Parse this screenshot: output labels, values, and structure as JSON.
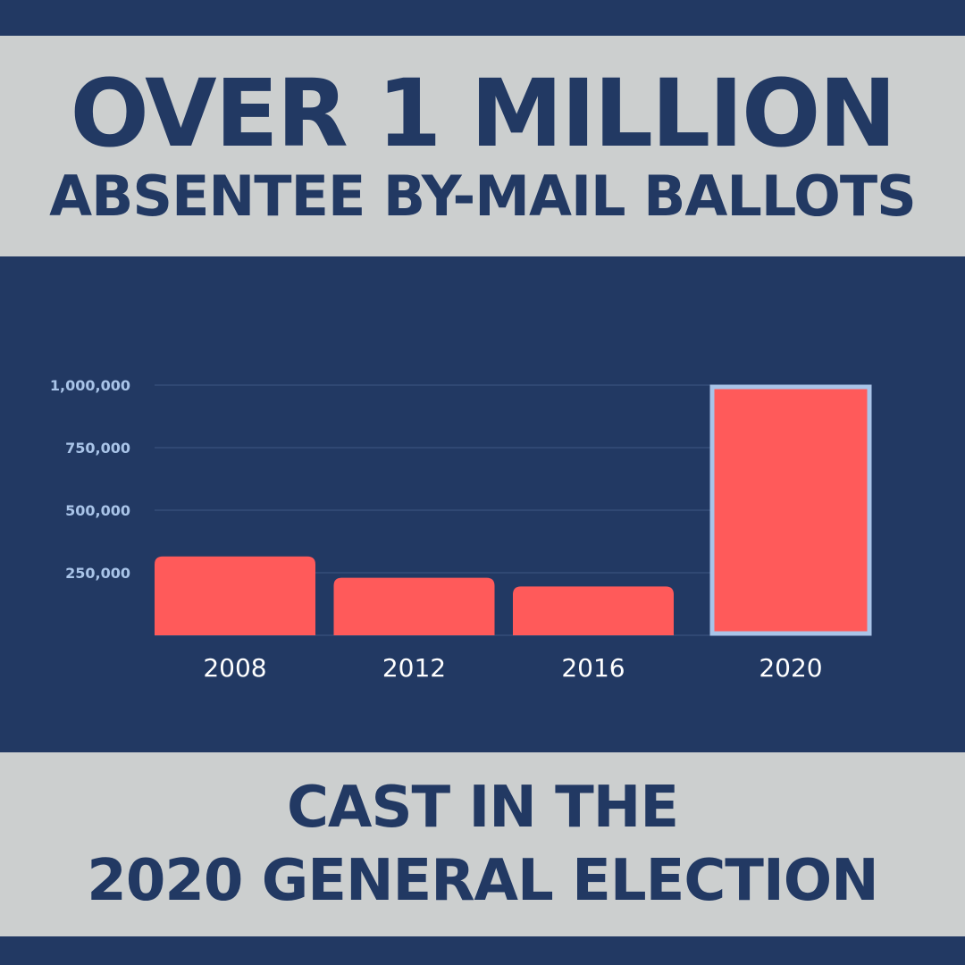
{
  "header": {
    "line1": "OVER 1 MILLION",
    "line2": "ABSENTEE BY-MAIL BALLOTS"
  },
  "footer": {
    "line1": "CAST IN THE",
    "line2": "2020 GENERAL ELECTION"
  },
  "colors": {
    "background": "#223963",
    "banner": "#cccfcf",
    "text": "#223963",
    "bar": "#ff5a5a",
    "highlight_border": "#a9c4e8",
    "tick_label": "#a9c4e8",
    "category_label": "#ffffff"
  },
  "chart_data": {
    "type": "bar",
    "categories": [
      "2008",
      "2012",
      "2016",
      "2020"
    ],
    "values": [
      315000,
      230000,
      195000,
      1000000
    ],
    "ylim": [
      0,
      1000000
    ],
    "yticks": [
      250000,
      500000,
      750000,
      1000000
    ],
    "ytick_labels": [
      "250,000",
      "500,000",
      "750,000",
      "1,000,000"
    ],
    "highlighted_category": "2020",
    "grid": true,
    "legend": "none"
  }
}
